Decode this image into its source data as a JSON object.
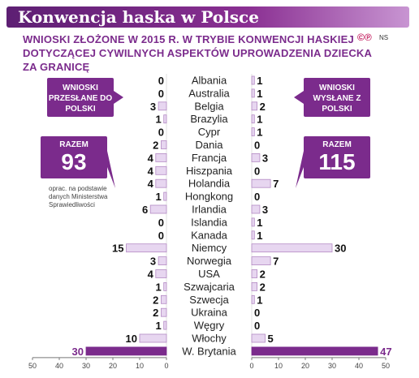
{
  "header": {
    "title": "Konwencja haska w Polsce",
    "subtitle": "Wnioski złożone w 2015 r. w trybie konwencji haskiej dotyczącej cywilnych aspektów uprowadzenia dziecka za granicę",
    "logo": "©℗",
    "source_mark": "NS"
  },
  "panels": {
    "left_label": "Wnioski przesłane do Polski",
    "right_label": "Wnioski wysłane z Polski",
    "left_total_label": "Razem",
    "left_total": "93",
    "right_total_label": "Razem",
    "right_total": "115",
    "note": "oprac. na podstawie danych Ministerstwa Sprawiedliwości"
  },
  "colors": {
    "accent": "#7b2b8c",
    "bar_fill": "#e7d6f0",
    "bar_stroke": "#b48ac4",
    "highlight_bar": "#7b2b8c"
  },
  "chart_data": {
    "type": "bar",
    "orientation": "horizontal-butterfly",
    "categories": [
      "Albania",
      "Australia",
      "Belgia",
      "Brazylia",
      "Cypr",
      "Dania",
      "Francja",
      "Hiszpania",
      "Holandia",
      "Hongkong",
      "Irlandia",
      "Islandia",
      "Kanada",
      "Niemcy",
      "Norwegia",
      "USA",
      "Szwajcaria",
      "Szwecja",
      "Ukraina",
      "Węgry",
      "Włochy",
      "W. Brytania"
    ],
    "series": [
      {
        "name": "Wnioski przesłane do Polski",
        "values": [
          0,
          0,
          3,
          1,
          0,
          2,
          4,
          4,
          4,
          1,
          6,
          0,
          0,
          15,
          3,
          4,
          1,
          2,
          2,
          1,
          10,
          30
        ]
      },
      {
        "name": "Wnioski wysłane z Polski",
        "values": [
          1,
          1,
          2,
          1,
          1,
          0,
          3,
          0,
          7,
          0,
          3,
          1,
          1,
          30,
          7,
          2,
          2,
          1,
          0,
          0,
          5,
          47
        ]
      }
    ],
    "left_axis": {
      "ticks": [
        "50",
        "40",
        "30",
        "20",
        "10",
        "0"
      ],
      "range": [
        0,
        50
      ]
    },
    "right_axis": {
      "ticks": [
        "0",
        "10",
        "20",
        "30",
        "40",
        "50"
      ],
      "range": [
        0,
        50
      ]
    }
  }
}
